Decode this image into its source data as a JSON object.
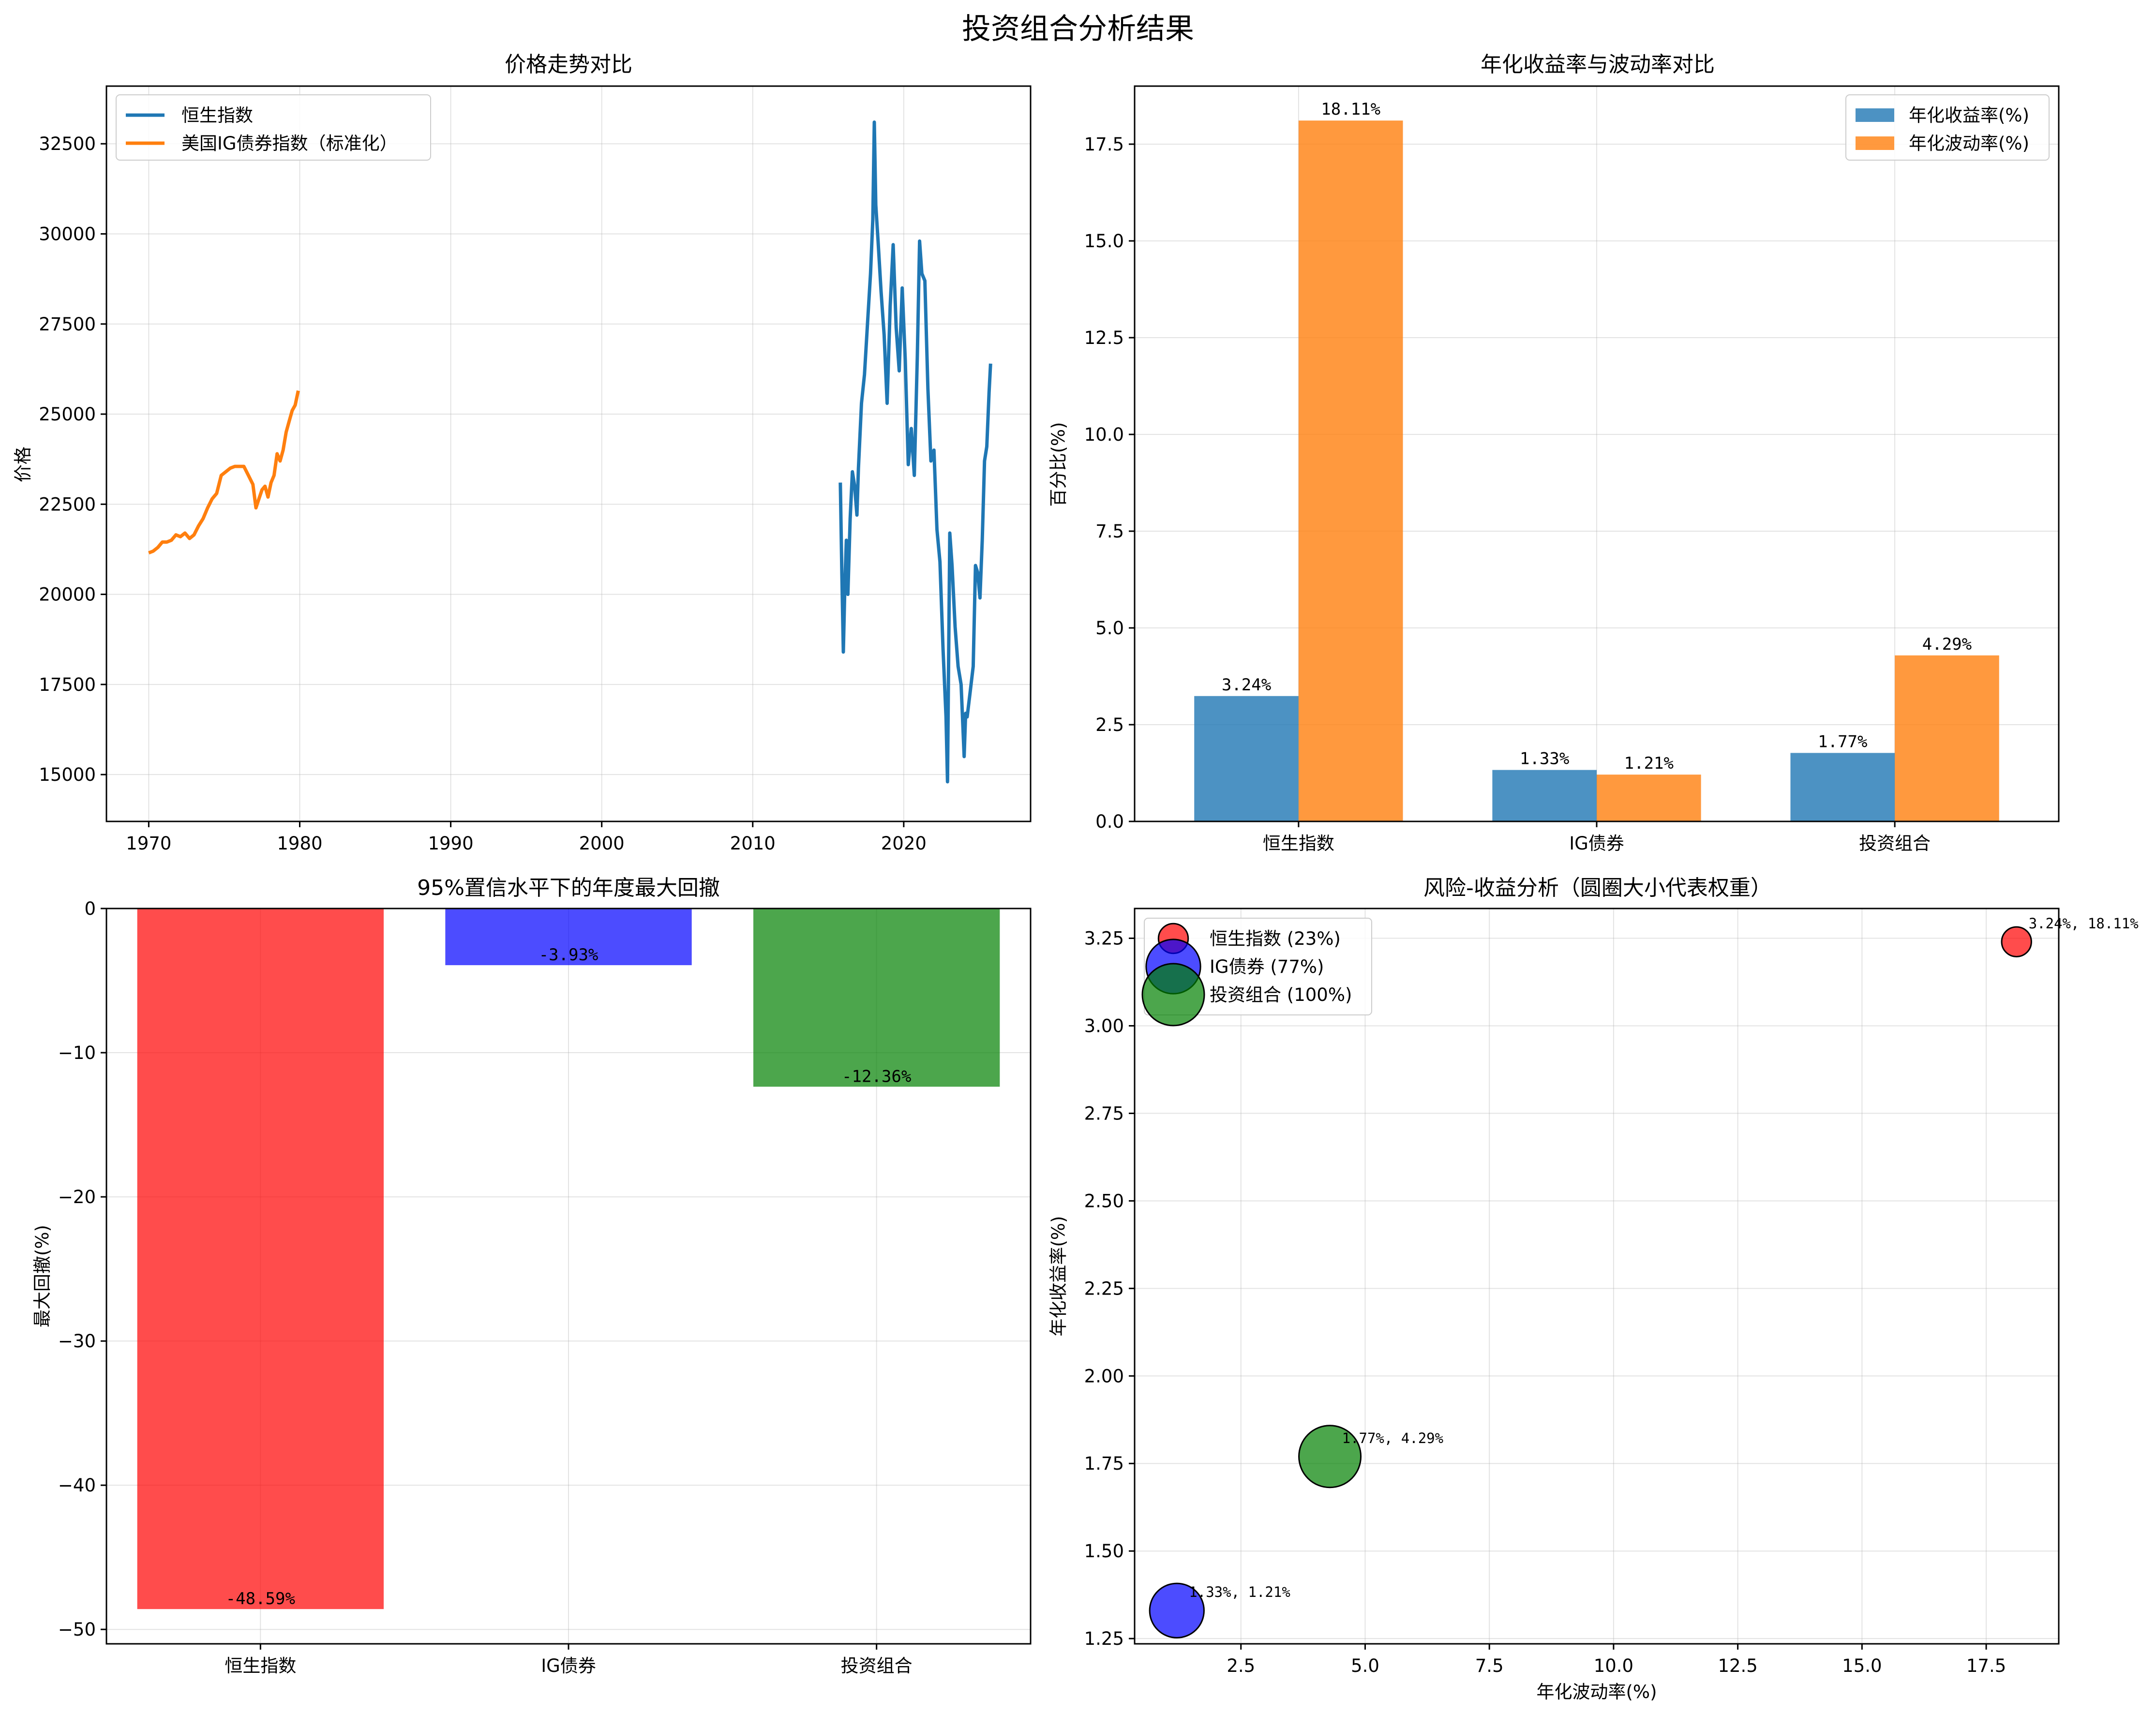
{
  "figure": {
    "title": "投资组合分析结果"
  },
  "chart_data": [
    {
      "id": "price",
      "type": "line",
      "title": "价格走势对比",
      "xlabel": "",
      "ylabel": "价格",
      "xlim": [
        1967.2,
        2028.4
      ],
      "ylim": [
        13700,
        34100
      ],
      "xticks": [
        1970,
        1980,
        1990,
        2000,
        2010,
        2020
      ],
      "yticks": [
        15000,
        17500,
        20000,
        22500,
        25000,
        27500,
        30000,
        32500
      ],
      "grid": true,
      "legend": "upper-left",
      "series": [
        {
          "name": "恒生指数",
          "color": "#1f77b4",
          "x": [
            2015.8,
            2015.9,
            2016.0,
            2016.1,
            2016.2,
            2016.3,
            2016.45,
            2016.6,
            2016.75,
            2016.9,
            2017.0,
            2017.2,
            2017.4,
            2017.6,
            2017.8,
            2017.95,
            2018.05,
            2018.15,
            2018.3,
            2018.5,
            2018.7,
            2018.9,
            2019.1,
            2019.3,
            2019.5,
            2019.7,
            2019.9,
            2020.1,
            2020.3,
            2020.5,
            2020.7,
            2020.9,
            2021.05,
            2021.2,
            2021.4,
            2021.6,
            2021.8,
            2022.0,
            2022.2,
            2022.4,
            2022.6,
            2022.8,
            2022.9,
            2023.05,
            2023.2,
            2023.4,
            2023.6,
            2023.8,
            2024.0,
            2024.1,
            2024.2,
            2024.4,
            2024.6,
            2024.75,
            2024.9,
            2025.05,
            2025.2,
            2025.35,
            2025.5,
            2025.65,
            2025.75
          ],
          "values": [
            23100,
            20600,
            18400,
            20200,
            21500,
            20000,
            22100,
            23400,
            23000,
            22200,
            23500,
            25300,
            26100,
            27500,
            28900,
            30400,
            33100,
            30800,
            29800,
            28400,
            27200,
            25300,
            28000,
            29700,
            27400,
            26200,
            28500,
            26500,
            23600,
            24600,
            23300,
            26600,
            29800,
            28900,
            28700,
            25700,
            23700,
            24000,
            21800,
            20900,
            18500,
            16600,
            14800,
            21700,
            20800,
            19100,
            18000,
            17500,
            15500,
            16700,
            16600,
            17300,
            18000,
            20800,
            20600,
            19900,
            21500,
            23700,
            24100,
            25600,
            26400
          ]
        },
        {
          "name": "美国IG债券指数（标准化）",
          "color": "#ff7f0e",
          "x": [
            1970.0,
            1970.3,
            1970.6,
            1970.9,
            1971.2,
            1971.5,
            1971.8,
            1972.1,
            1972.4,
            1972.7,
            1973.0,
            1973.3,
            1973.6,
            1973.9,
            1974.2,
            1974.5,
            1974.8,
            1975.1,
            1975.4,
            1975.7,
            1976.0,
            1976.3,
            1976.6,
            1976.9,
            1977.1,
            1977.3,
            1977.5,
            1977.7,
            1977.9,
            1978.1,
            1978.3,
            1978.5,
            1978.7,
            1978.9,
            1979.1,
            1979.3,
            1979.5,
            1979.7,
            1979.9
          ],
          "values": [
            21150,
            21200,
            21300,
            21450,
            21450,
            21500,
            21650,
            21600,
            21700,
            21550,
            21650,
            21900,
            22100,
            22400,
            22650,
            22800,
            23300,
            23400,
            23500,
            23550,
            23550,
            23550,
            23300,
            23050,
            22400,
            22650,
            22900,
            23000,
            22700,
            23100,
            23300,
            23900,
            23700,
            24000,
            24500,
            24800,
            25100,
            25250,
            25650
          ]
        }
      ]
    },
    {
      "id": "return_vol",
      "type": "bar",
      "title": "年化收益率与波动率对比",
      "xlabel": "",
      "ylabel": "百分比(%)",
      "categories": [
        "恒生指数",
        "IG债券",
        "投资组合"
      ],
      "ylim": [
        0,
        19.0
      ],
      "yticks": [
        0.0,
        2.5,
        5.0,
        7.5,
        10.0,
        12.5,
        15.0,
        17.5
      ],
      "grid": true,
      "legend": "upper-right",
      "series": [
        {
          "name": "年化收益率(%)",
          "color": "#1f77b4",
          "values": [
            3.24,
            1.33,
            1.77
          ],
          "labels": [
            "3.24%",
            "1.33%",
            "1.77%"
          ]
        },
        {
          "name": "年化波动率(%)",
          "color": "#ff7f0e",
          "values": [
            18.11,
            1.21,
            4.29
          ],
          "labels": [
            "18.11%",
            "1.21%",
            "4.29%"
          ]
        }
      ]
    },
    {
      "id": "drawdown",
      "type": "bar",
      "title": "95%置信水平下的年度最大回撤",
      "xlabel": "",
      "ylabel": "最大回撤(%)",
      "categories": [
        "恒生指数",
        "IG债券",
        "投资组合"
      ],
      "ylim": [
        -51.0,
        0
      ],
      "yticks": [
        0,
        -10,
        -20,
        -30,
        -40,
        -50
      ],
      "grid": true,
      "values": [
        -48.59,
        -3.93,
        -12.36
      ],
      "labels": [
        "-48.59%",
        "-3.93%",
        "-12.36%"
      ],
      "colors": [
        "#ff0000",
        "#0000ff",
        "#008000"
      ]
    },
    {
      "id": "risk_return",
      "type": "scatter",
      "title": "风险-收益分析（圆圈大小代表权重）",
      "xlabel": "年化波动率(%)",
      "ylabel": "年化收益率(%)",
      "xlim": [
        0.36,
        18.96
      ],
      "ylim": [
        1.235,
        3.335
      ],
      "xticks": [
        2.5,
        5.0,
        7.5,
        10.0,
        12.5,
        15.0,
        17.5
      ],
      "yticks": [
        1.25,
        1.5,
        1.75,
        2.0,
        2.25,
        2.5,
        2.75,
        3.0,
        3.25
      ],
      "grid": true,
      "legend": "upper-left",
      "points": [
        {
          "name": "恒生指数 (23%)",
          "x": 18.11,
          "y": 3.24,
          "weight": 23,
          "color": "#ff0000",
          "label": "3.24%, 18.11%"
        },
        {
          "name": "IG债券 (77%)",
          "x": 1.21,
          "y": 1.33,
          "weight": 77,
          "color": "#0000ff",
          "label": "1.33%, 1.21%"
        },
        {
          "name": "投资组合 (100%)",
          "x": 4.29,
          "y": 1.77,
          "weight": 100,
          "color": "#008000",
          "label": "1.77%, 4.29%"
        }
      ]
    }
  ]
}
